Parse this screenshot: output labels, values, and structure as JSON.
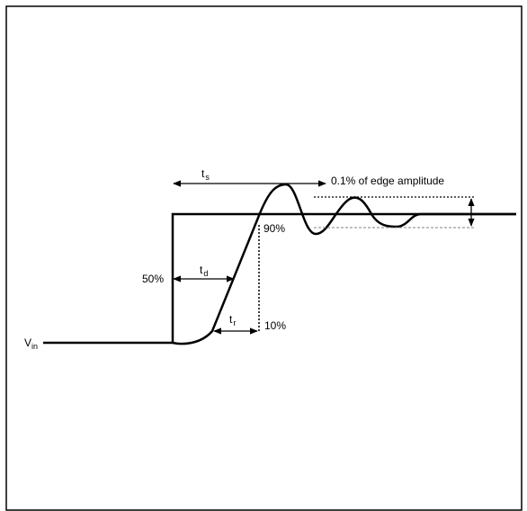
{
  "labels": {
    "vin_main": "V",
    "vin_sub": "in",
    "ts_main": "t",
    "ts_sub": "s",
    "td_main": "t",
    "td_sub": "d",
    "tr_main": "t",
    "tr_sub": "r",
    "pct50": "50%",
    "pct90": "90%",
    "pct10": "10%",
    "amplitude": "0.1% of edge amplitude"
  },
  "colors": {
    "line": "#000000",
    "guide": "#808080",
    "background": "#ffffff"
  }
}
